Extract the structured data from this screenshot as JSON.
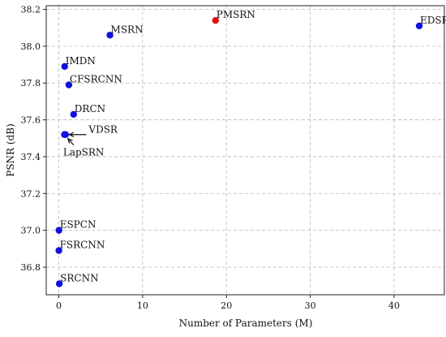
{
  "chart_data": {
    "type": "scatter",
    "title": "",
    "xlabel": "Number of Parameters (M)",
    "ylabel": "PSNR (dB)",
    "xlim": [
      -1.5,
      46
    ],
    "ylim": [
      36.65,
      38.22
    ],
    "grid": true,
    "x_ticks": [
      0,
      10,
      20,
      30,
      40
    ],
    "y_ticks": [
      36.8,
      37.0,
      37.2,
      37.4,
      37.6,
      37.8,
      38.0,
      38.2
    ],
    "colors": {
      "default": "#1010e0",
      "highlight": "#e01010"
    },
    "points": [
      {
        "label": "SRCNN",
        "x": 0.06,
        "y": 36.71,
        "highlight": false
      },
      {
        "label": "FSRCNN",
        "x": 0.01,
        "y": 36.89,
        "highlight": false
      },
      {
        "label": "ESPCN",
        "x": 0.02,
        "y": 37.0,
        "highlight": false
      },
      {
        "label": "VDSR",
        "x": 0.67,
        "y": 37.52,
        "highlight": false
      },
      {
        "label": "LapSRN",
        "x": 0.81,
        "y": 37.52,
        "highlight": false
      },
      {
        "label": "DRCN",
        "x": 1.77,
        "y": 37.63,
        "highlight": false
      },
      {
        "label": "CFSRCNN",
        "x": 1.2,
        "y": 37.79,
        "highlight": false
      },
      {
        "label": "IMDN",
        "x": 0.7,
        "y": 37.89,
        "highlight": false
      },
      {
        "label": "MSRN",
        "x": 6.1,
        "y": 38.06,
        "highlight": false
      },
      {
        "label": "PMSRN",
        "x": 18.7,
        "y": 38.14,
        "highlight": true
      },
      {
        "label": "EDSR",
        "x": 43.0,
        "y": 38.11,
        "highlight": false
      }
    ],
    "annotations": [
      {
        "text": "VDSR",
        "target": "VDSR",
        "placement": "right"
      },
      {
        "text": "LapSRN",
        "target": "LapSRN",
        "placement": "below-right"
      }
    ]
  }
}
